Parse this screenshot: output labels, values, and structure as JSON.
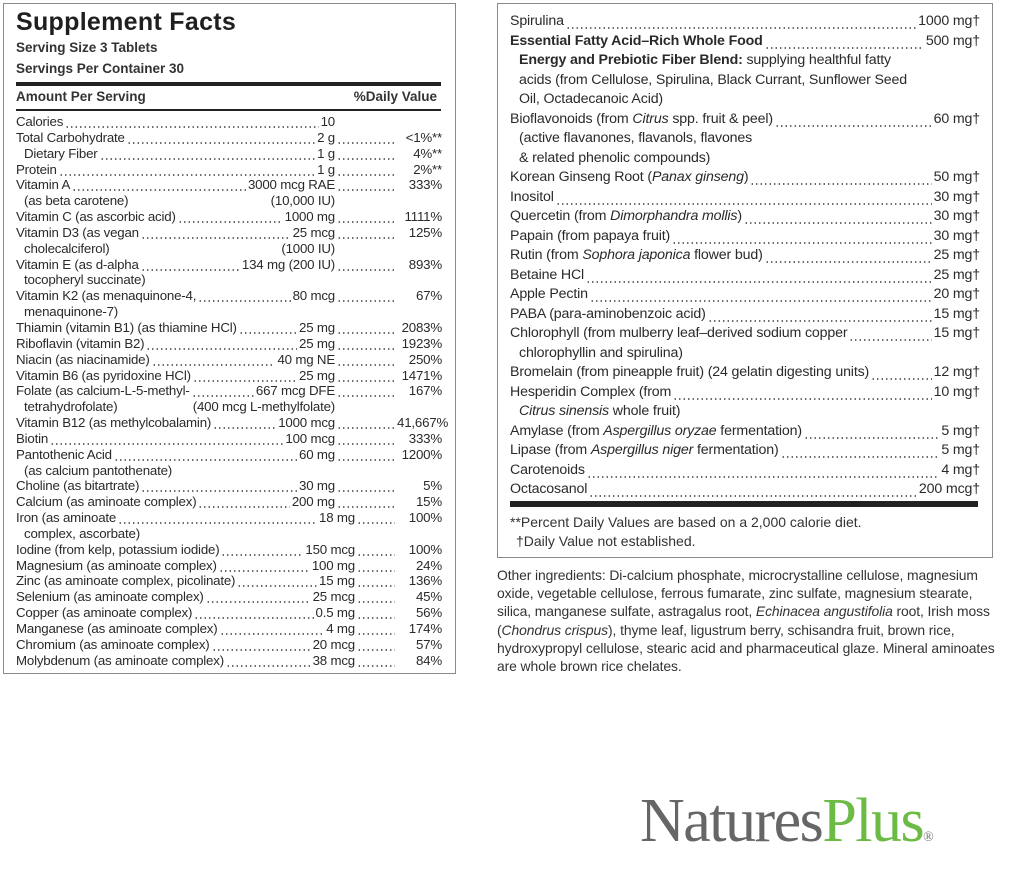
{
  "title": "Supplement Facts",
  "serving_size": "Serving Size 3 Tablets",
  "servings_per_container": "Servings Per Container 30",
  "header": {
    "amount": "Amount Per Serving",
    "dv": "%Daily Value"
  },
  "left_rows": [
    {
      "name": "Calories",
      "amount": "10",
      "dv": ""
    },
    {
      "name": "Total Carbohydrate",
      "amount": "2 g",
      "dv": "<1%**"
    },
    {
      "name": "Dietary Fiber",
      "amount": "1 g",
      "dv": "4%**",
      "indent": true
    },
    {
      "name": "Protein",
      "amount": "1 g",
      "dv": "2%**"
    },
    {
      "name": "Vitamin A",
      "amount": "3000 mcg RAE",
      "dv": "333%",
      "sub": "(as beta carotene)",
      "sub_amount": "(10,000 IU)"
    },
    {
      "name": "Vitamin C (as ascorbic acid)",
      "amount": "1000 mg",
      "dv": "1111%"
    },
    {
      "name": "Vitamin D3 (as vegan",
      "amount": "25 mcg",
      "dv": "125%",
      "sub": "cholecalciferol)",
      "sub_amount": "(1000 IU)"
    },
    {
      "name": "Vitamin E (as d-alpha",
      "amount": "134 mg (200 IU)",
      "dv": "893%",
      "sub": "tocopheryl succinate)",
      "sub_amount": ""
    },
    {
      "name": "Vitamin K2 (as menaquinone-4,",
      "amount": "80 mcg",
      "dv": "67%",
      "sub": "menaquinone-7)",
      "sub_amount": ""
    },
    {
      "name": "Thiamin (vitamin B1) (as thiamine HCl)",
      "amount": "25 mg",
      "dv": "2083%"
    },
    {
      "name": "Riboflavin (vitamin B2)",
      "amount": "25 mg",
      "dv": "1923%"
    },
    {
      "name": "Niacin (as niacinamide)",
      "amount": "40 mg NE",
      "dv": "250%"
    },
    {
      "name": "Vitamin B6 (as pyridoxine HCl)",
      "amount": "25 mg",
      "dv": "1471%"
    },
    {
      "name": "Folate (as calcium-L-5-methyl-",
      "amount": "667 mcg DFE",
      "dv": "167%",
      "sub": "tetrahydrofolate)",
      "sub_amount": "(400 mcg L-methylfolate)"
    },
    {
      "name": "Vitamin B12 (as methylcobalamin)",
      "amount": "1000 mcg",
      "dv": "41,667%"
    },
    {
      "name": "Biotin",
      "amount": "100 mcg",
      "dv": "333%"
    },
    {
      "name": "Pantothenic Acid",
      "amount": "60 mg",
      "dv": "1200%",
      "sub": "(as calcium pantothenate)",
      "sub_amount": ""
    },
    {
      "name": "Choline (as bitartrate)",
      "amount": "30 mg",
      "dv": "5%"
    },
    {
      "name": "Calcium (as aminoate complex)",
      "amount": "200 mg",
      "dv": "15%"
    },
    {
      "name": "Iron (as aminoate",
      "amount": "18 mg",
      "dv": "100%",
      "sub": "complex, ascorbate)",
      "sub_amount": ""
    },
    {
      "name": "Iodine (from kelp, potassium iodide)",
      "amount": "150 mcg",
      "dv": "100%"
    },
    {
      "name": "Magnesium (as aminoate complex)",
      "amount": "100 mg",
      "dv": "24%"
    },
    {
      "name": "Zinc (as aminoate complex, picolinate)",
      "amount": "15 mg",
      "dv": "136%"
    },
    {
      "name": "Selenium (as aminoate complex)",
      "amount": "25 mcg",
      "dv": "45%"
    },
    {
      "name": "Copper (as aminoate complex)",
      "amount": "0.5 mg",
      "dv": "56%"
    },
    {
      "name": "Manganese (as aminoate complex)",
      "amount": "4 mg",
      "dv": "174%"
    },
    {
      "name": "Chromium (as aminoate complex)",
      "amount": "20 mcg",
      "dv": "57%"
    },
    {
      "name": "Molybdenum (as aminoate complex)",
      "amount": "38 mcg",
      "dv": "84%"
    }
  ],
  "right_rows": [
    {
      "name": [
        {
          "t": "Spirulina"
        }
      ],
      "amount": "1000 mg†"
    },
    {
      "name": [
        {
          "t": "Essential Fatty Acid–Rich Whole Food",
          "b": true
        }
      ],
      "amount": "500 mg†",
      "blend": {
        "bold": "Energy and Prebiotic Fiber Blend:",
        "text": " supplying healthful fatty acids (from Cellulose, Spirulina, Black Currant, Sunflower Seed Oil, Octadecanoic Acid)"
      }
    },
    {
      "name": [
        {
          "t": "Bioflavonoids (from "
        },
        {
          "t": "Citrus",
          "i": true
        },
        {
          "t": " spp. fruit & peel)"
        }
      ],
      "amount": "60 mg†",
      "sub": [
        "(active flavanones, flavanols, flavones",
        "& related phenolic compounds)"
      ]
    },
    {
      "name": [
        {
          "t": "Korean Ginseng Root ("
        },
        {
          "t": "Panax ginseng",
          "i": true
        },
        {
          "t": ")"
        }
      ],
      "amount": "50 mg†"
    },
    {
      "name": [
        {
          "t": "Inositol"
        }
      ],
      "amount": "30 mg†"
    },
    {
      "name": [
        {
          "t": "Quercetin (from "
        },
        {
          "t": "Dimorphandra mollis",
          "i": true
        },
        {
          "t": ")"
        }
      ],
      "amount": "30 mg†"
    },
    {
      "name": [
        {
          "t": "Papain (from papaya fruit)"
        }
      ],
      "amount": "30 mg†"
    },
    {
      "name": [
        {
          "t": "Rutin (from "
        },
        {
          "t": "Sophora japonica",
          "i": true
        },
        {
          "t": " flower bud)"
        }
      ],
      "amount": "25 mg†"
    },
    {
      "name": [
        {
          "t": "Betaine HCl"
        }
      ],
      "amount": "25 mg†"
    },
    {
      "name": [
        {
          "t": "Apple Pectin"
        }
      ],
      "amount": "20 mg†"
    },
    {
      "name": [
        {
          "t": "PABA (para-aminobenzoic acid)"
        }
      ],
      "amount": "15 mg†"
    },
    {
      "name": [
        {
          "t": "Chlorophyll (from mulberry leaf–derived sodium copper"
        }
      ],
      "amount": "15 mg†",
      "sub": [
        "chlorophyllin and spirulina)"
      ]
    },
    {
      "name": [
        {
          "t": "Bromelain (from pineapple fruit) (24 gelatin digesting units)"
        }
      ],
      "amount": "12 mg†"
    },
    {
      "name": [
        {
          "t": "Hesperidin Complex (from"
        }
      ],
      "amount": "10 mg†",
      "sub_italic": "Citrus sinensis",
      "sub_rest": " whole fruit)"
    },
    {
      "name": [
        {
          "t": "Amylase (from "
        },
        {
          "t": "Aspergillus oryzae",
          "i": true
        },
        {
          "t": " fermentation)"
        }
      ],
      "amount": "5 mg†"
    },
    {
      "name": [
        {
          "t": "Lipase (from "
        },
        {
          "t": "Aspergillus niger",
          "i": true
        },
        {
          "t": " fermentation)"
        }
      ],
      "amount": "5 mg†"
    },
    {
      "name": [
        {
          "t": "Carotenoids"
        }
      ],
      "amount": "4 mg†"
    },
    {
      "name": [
        {
          "t": "Octacosanol"
        }
      ],
      "amount": "200 mcg†"
    }
  ],
  "footnotes": [
    "**Percent Daily Values are based on a 2,000 calorie diet.",
    "†Daily Value not established."
  ],
  "other_ingredients": [
    {
      "t": "Other ingredients: Di-calcium phosphate, microcrystalline cellulose, magnesium oxide, vegetable cellulose, ferrous fumarate, zinc sulfate, magnesium stearate, silica, manganese sulfate, astragalus root, "
    },
    {
      "t": "Echinacea angustifolia",
      "i": true
    },
    {
      "t": " root, Irish moss ("
    },
    {
      "t": "Chondrus crispus",
      "i": true
    },
    {
      "t": "), thyme leaf, ligustrum berry, schisandra fruit, brown rice, hydroxypropyl cellulose, stearic acid and pharmaceutical glaze. Mineral aminoates are whole brown rice chelates."
    }
  ],
  "logo": {
    "part1": "Natures",
    "part2": "Plus",
    "mark": "®",
    "colors": {
      "part1": "#666666",
      "part2": "#6cbb45"
    }
  }
}
